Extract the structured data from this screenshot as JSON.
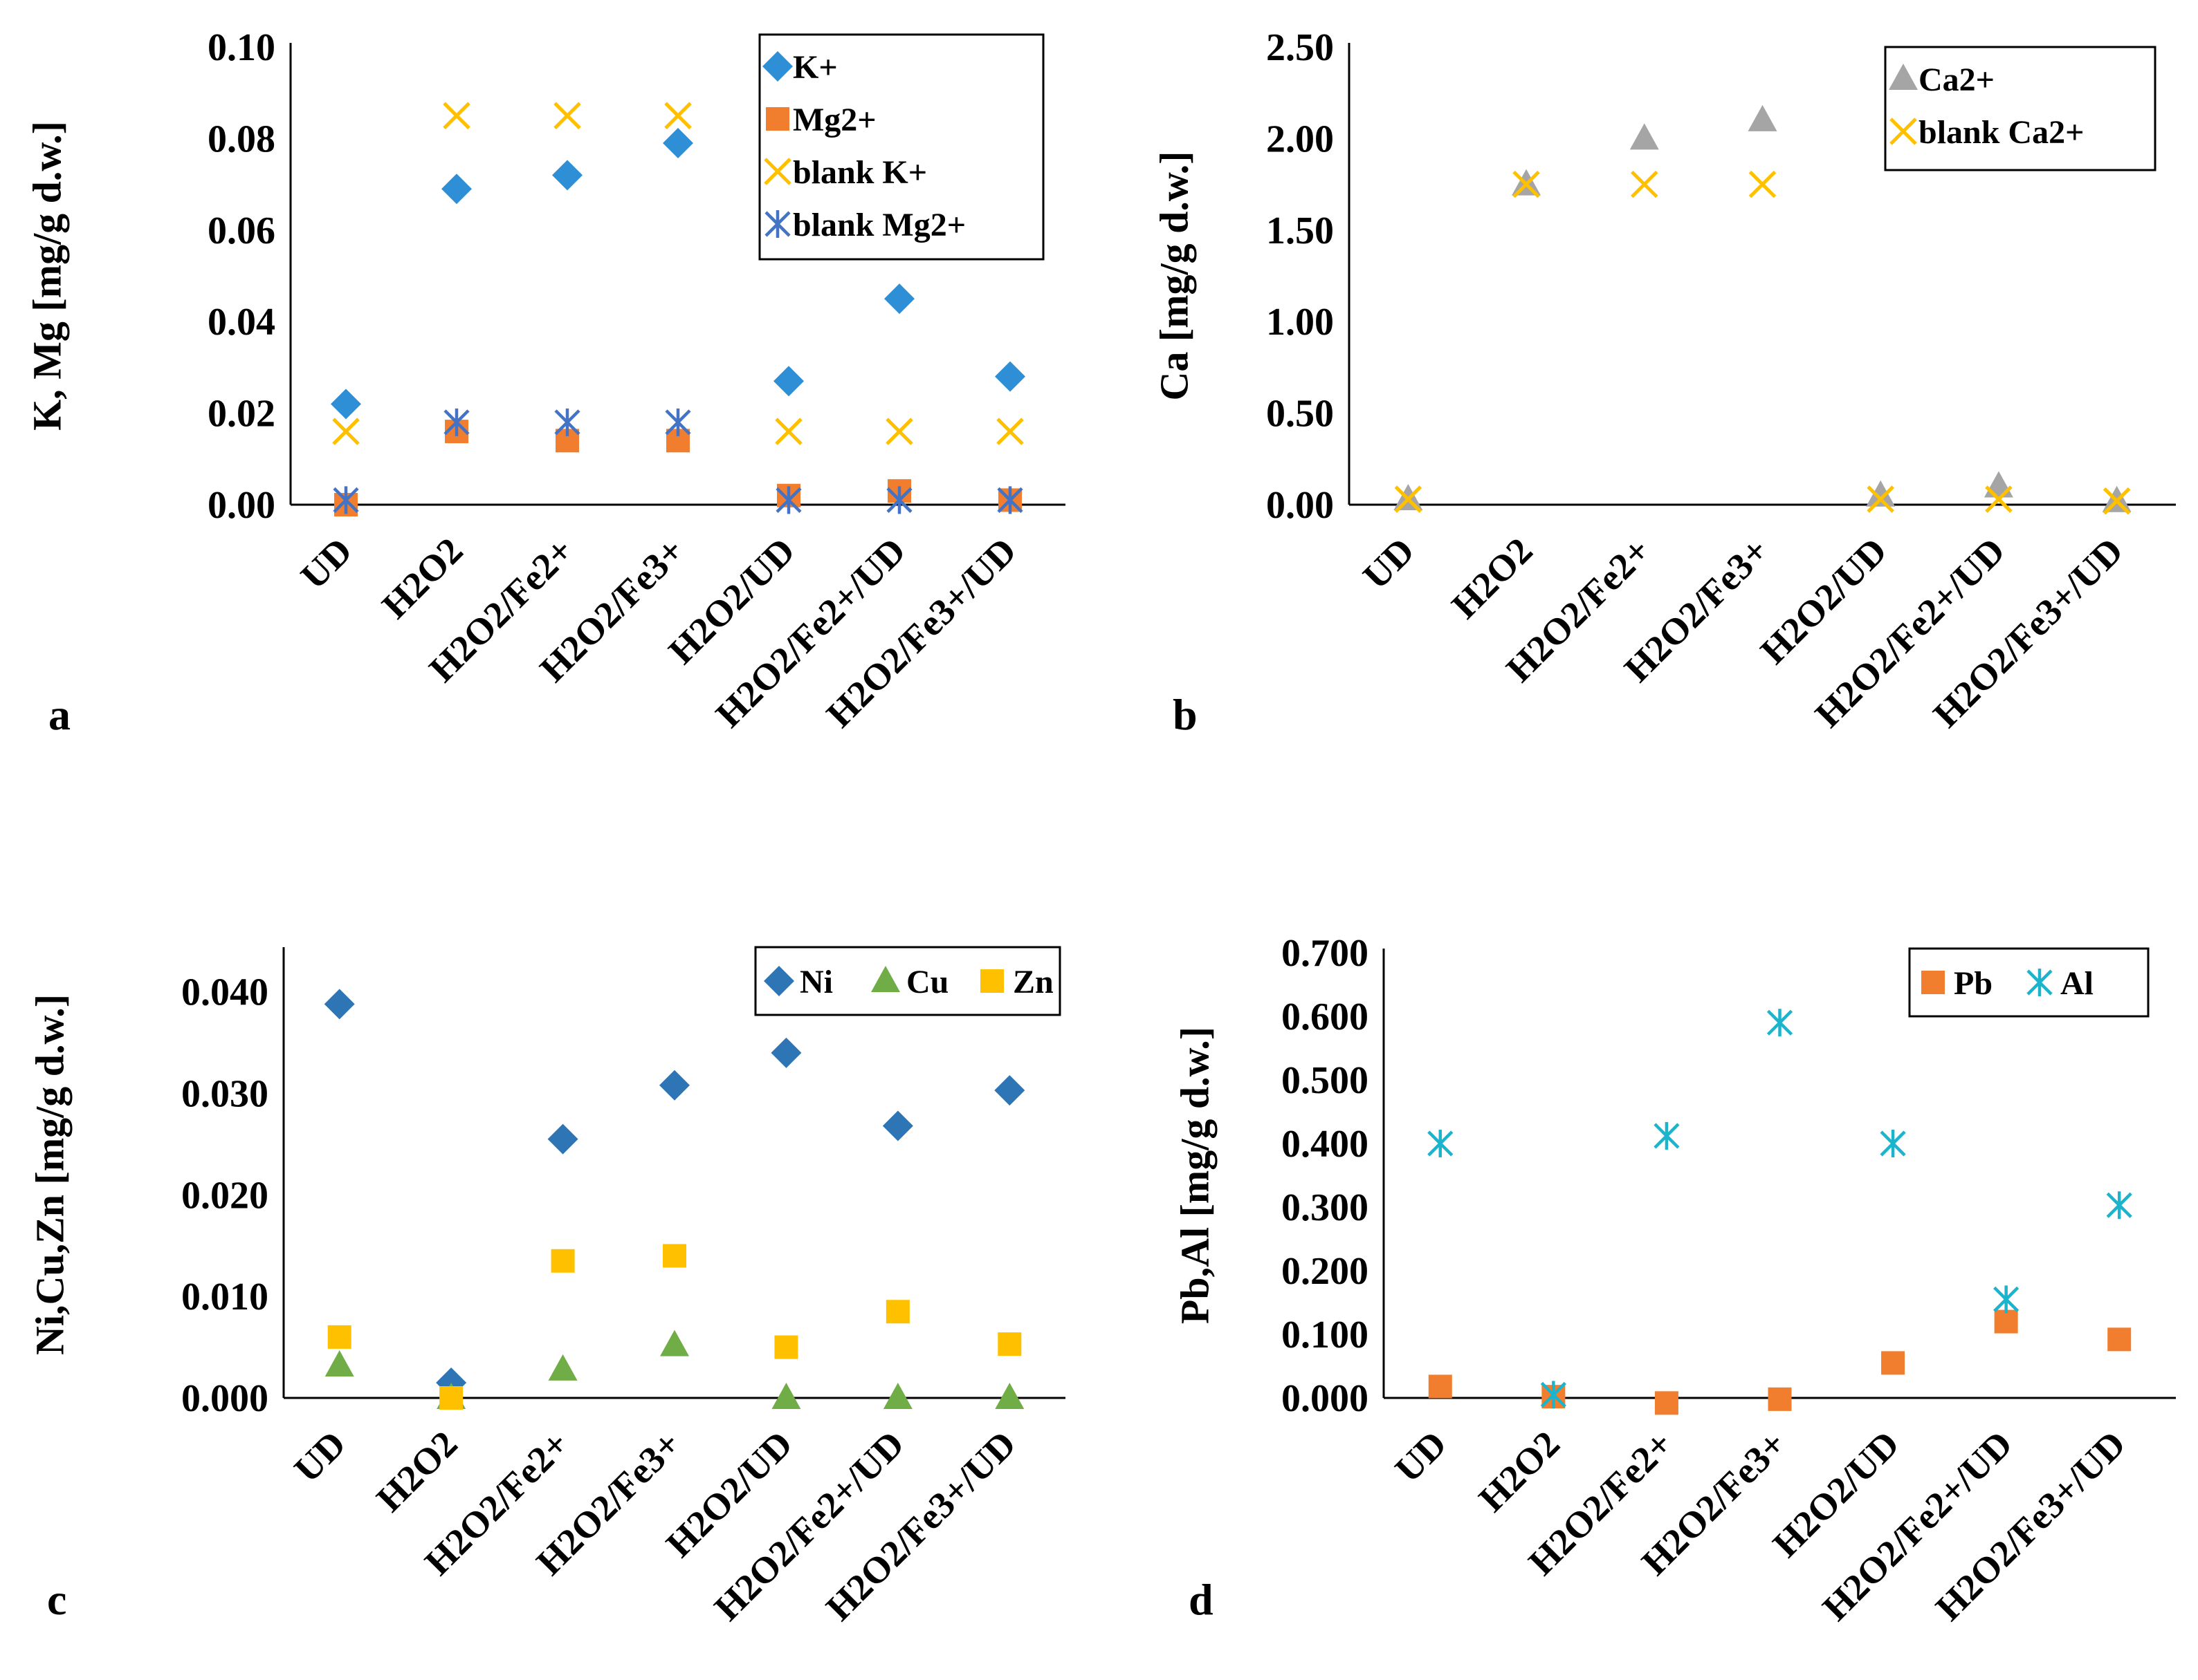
{
  "figure": {
    "categories": [
      "UD",
      "H2O2",
      "H2O2/Fe2+",
      "H2O2/Fe3+",
      "H2O2/UD",
      "H2O2/Fe2+/UD",
      "H2O2/Fe3+/UD"
    ]
  },
  "chart_data": [
    {
      "id": "a",
      "type": "scatter",
      "panel_label": "a",
      "ylabel": "K, Mg [mg/g d.w.]",
      "xlabel": "",
      "ylim": [
        0,
        0.1
      ],
      "yticks": [
        "0.00",
        "0.02",
        "0.04",
        "0.06",
        "0.08",
        "0.10"
      ],
      "categories": [
        "UD",
        "H2O2",
        "H2O2/Fe2+",
        "H2O2/Fe3+",
        "H2O2/UD",
        "H2O2/Fe2+/UD",
        "H2O2/Fe3+/UD"
      ],
      "legend_position": "top-right",
      "legend_layout": "vertical",
      "series": [
        {
          "name": "K+",
          "marker": "diamond",
          "color": "#2E8FD6",
          "values": [
            0.022,
            0.069,
            0.072,
            0.079,
            0.027,
            0.045,
            0.028
          ]
        },
        {
          "name": "Mg2+",
          "marker": "square",
          "color": "#F07E2E",
          "values": [
            0.0,
            0.016,
            0.014,
            0.014,
            0.002,
            0.003,
            0.001
          ]
        },
        {
          "name": "blank K+",
          "marker": "x",
          "color": "#FFC000",
          "values": [
            0.016,
            0.085,
            0.085,
            0.085,
            0.016,
            0.016,
            0.016
          ]
        },
        {
          "name": "blank Mg2+",
          "marker": "asterisk",
          "color": "#4472C4",
          "values": [
            0.001,
            0.018,
            0.018,
            0.018,
            0.001,
            0.001,
            0.001
          ]
        }
      ]
    },
    {
      "id": "b",
      "type": "scatter",
      "panel_label": "b",
      "ylabel": "Ca [mg/g d.w.]",
      "xlabel": "",
      "ylim": [
        0,
        2.5
      ],
      "yticks": [
        "0.00",
        "0.50",
        "1.00",
        "1.50",
        "2.00",
        "2.50"
      ],
      "categories": [
        "UD",
        "H2O2",
        "H2O2/Fe2+",
        "H2O2/Fe3+",
        "H2O2/UD",
        "H2O2/Fe2+/UD",
        "H2O2/Fe3+/UD"
      ],
      "legend_position": "top-right",
      "legend_layout": "vertical",
      "series": [
        {
          "name": "Ca2+",
          "marker": "triangle",
          "color": "#A5A5A5",
          "values": [
            0.03,
            1.75,
            2.0,
            2.1,
            0.05,
            0.1,
            0.02
          ]
        },
        {
          "name": "blank Ca2+",
          "marker": "x",
          "color": "#FFC000",
          "values": [
            0.03,
            1.75,
            1.75,
            1.75,
            0.03,
            0.03,
            0.02
          ]
        }
      ]
    },
    {
      "id": "c",
      "type": "scatter",
      "panel_label": "c",
      "ylabel": "Ni,Cu,Zn [mg/g d.w.]",
      "xlabel": "",
      "ylim": [
        0,
        0.044
      ],
      "yticks": [
        "0.000",
        "0.010",
        "0.020",
        "0.030",
        "0.040"
      ],
      "categories": [
        "UD",
        "H2O2",
        "H2O2/Fe2+",
        "H2O2/Fe3+",
        "H2O2/UD",
        "H2O2/Fe2+/UD",
        "H2O2/Fe3+/UD"
      ],
      "legend_position": "top-right",
      "legend_layout": "horizontal",
      "series": [
        {
          "name": "Ni",
          "marker": "diamond",
          "color": "#2E75B6",
          "values": [
            0.0388,
            0.0015,
            0.0255,
            0.0308,
            0.034,
            0.0268,
            0.0303
          ]
        },
        {
          "name": "Cu",
          "marker": "triangle",
          "color": "#70AD47",
          "values": [
            0.0032,
            0.0,
            0.0028,
            0.0052,
            0.0,
            0.0,
            0.0
          ]
        },
        {
          "name": "Zn",
          "marker": "square",
          "color": "#FFC000",
          "values": [
            0.006,
            0.0,
            0.0135,
            0.014,
            0.005,
            0.0085,
            0.0053
          ]
        }
      ]
    },
    {
      "id": "d",
      "type": "scatter",
      "panel_label": "d",
      "ylabel": "Pb,Al [mg/g d.w.]",
      "xlabel": "",
      "ylim": [
        0,
        0.7
      ],
      "yticks": [
        "0.000",
        "0.100",
        "0.200",
        "0.300",
        "0.400",
        "0.500",
        "0.600",
        "0.700"
      ],
      "categories": [
        "UD",
        "H2O2",
        "H2O2/Fe2+",
        "H2O2/Fe3+",
        "H2O2/UD",
        "H2O2/Fe2+/UD",
        "H2O2/Fe3+/UD"
      ],
      "legend_position": "top-right",
      "legend_layout": "horizontal",
      "series": [
        {
          "name": "Pb",
          "marker": "square",
          "color": "#F07E2E",
          "values": [
            0.018,
            0.002,
            -0.008,
            -0.002,
            0.055,
            0.12,
            0.092
          ]
        },
        {
          "name": "Al",
          "marker": "asterisk",
          "color": "#1CB3CC",
          "values": [
            0.4,
            0.005,
            0.412,
            0.59,
            0.4,
            0.155,
            0.303
          ]
        }
      ]
    }
  ]
}
